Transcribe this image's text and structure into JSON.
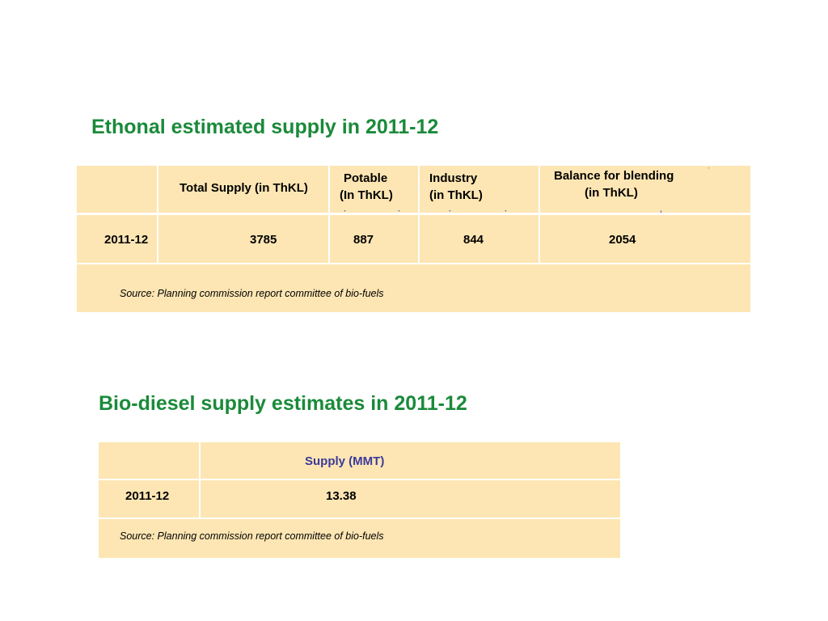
{
  "ethanol": {
    "title": "Ethonal estimated supply in 2011-12",
    "headers": {
      "total_supply": "Total Supply (in ThKL)",
      "potable_line1": "Potable",
      "potable_line2": "(In ThKL)",
      "industry_line1": "Industry",
      "industry_line2": "(in ThKL)",
      "balance_line1": "Balance for blending",
      "balance_line2": "(in ThKL)"
    },
    "row": {
      "year": "2011-12",
      "total_supply": "3785",
      "potable": "887",
      "industry": "844",
      "balance": "2054"
    },
    "source": "Source: Planning commission report committee of bio-fuels"
  },
  "biodiesel": {
    "title": "Bio-diesel supply estimates in 2011-12",
    "header_supply": "Supply (MMT)",
    "row": {
      "year": "2011-12",
      "supply": "13.38"
    },
    "source": "Source: Planning commission report committee of bio-fuels"
  },
  "colors": {
    "title_green": "#1a8a3a",
    "cell_fill": "#fde6b3",
    "header_blue": "#3b3a9a"
  }
}
